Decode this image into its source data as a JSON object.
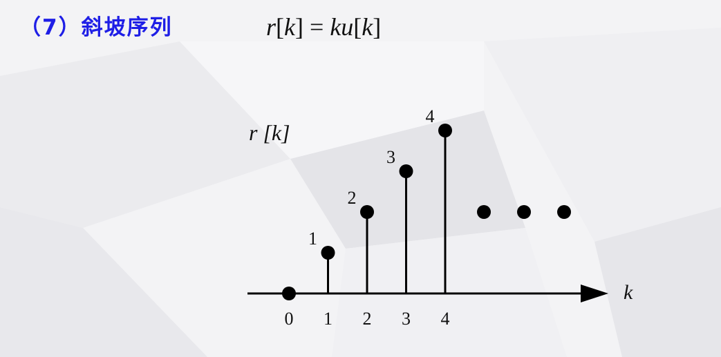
{
  "heading": {
    "number": "（7）",
    "title": "斜坡序列"
  },
  "formula": {
    "lhs": "r",
    "lhs_arg_open": "[",
    "lhs_arg": "k",
    "lhs_arg_close": "]",
    "equals": "=",
    "rhs_k": "k",
    "rhs_u": "u",
    "rhs_arg_open": "[",
    "rhs_arg": "k",
    "rhs_arg_close": "]"
  },
  "chart_data": {
    "type": "stem",
    "ylabel": "r [k]",
    "xlabel": "k",
    "x": [
      0,
      1,
      2,
      3,
      4
    ],
    "y": [
      0,
      1,
      2,
      3,
      4
    ],
    "x_tick_labels": [
      "0",
      "1",
      "2",
      "3",
      "4"
    ],
    "value_labels": [
      "",
      "1",
      "2",
      "3",
      "4"
    ],
    "continuation": "• • •",
    "continuation_dots": 3,
    "color": "#000000"
  }
}
